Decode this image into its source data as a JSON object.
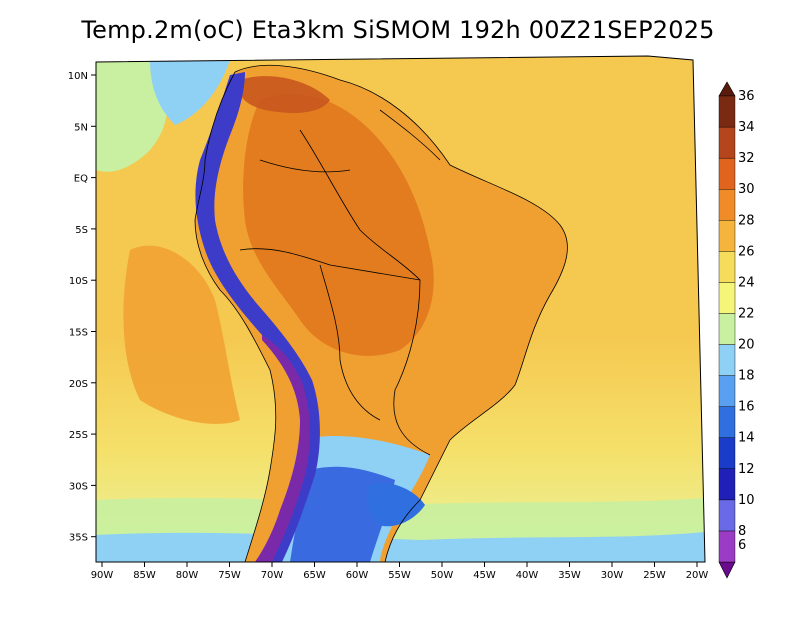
{
  "title": "Temp.2m(oC) Eta3km SiSMOM 192h 00Z21SEP2025",
  "lat_labels": [
    "10N",
    "5N",
    "EQ",
    "5S",
    "10S",
    "15S",
    "20S",
    "25S",
    "30S",
    "35S"
  ],
  "lon_labels": [
    "90W",
    "85W",
    "80W",
    "75W",
    "70W",
    "65W",
    "60W",
    "55W",
    "50W",
    "45W",
    "40W",
    "35W",
    "30W",
    "25W",
    "20W"
  ],
  "colorbar": {
    "labels": [
      "6",
      "8",
      "10",
      "12",
      "14",
      "16",
      "18",
      "20",
      "22",
      "24",
      "26",
      "28",
      "30",
      "32",
      "34",
      "36"
    ],
    "colors": [
      "#6a0a8c",
      "#9b3cc4",
      "#6a6ae6",
      "#2020b8",
      "#1a3cc8",
      "#2f6fe0",
      "#5aa0f0",
      "#8fd0f5",
      "#c8f0a0",
      "#f5f57a",
      "#f5dc5a",
      "#f5b43c",
      "#f08c28",
      "#e0641e",
      "#b4461e",
      "#7a2a12",
      "#5a1a0c"
    ]
  },
  "map": {
    "ocean_color": "#f5c850",
    "land_color": "#f0a030",
    "hot_color": "#e0781e",
    "andes_color": "#3c3cc8",
    "andes_cold_color": "#7a2aa8",
    "south_cold_color": "#3a6ae0",
    "south_mild_color": "#8fd0f5",
    "mid_cool_color": "#c8f0a0"
  }
}
